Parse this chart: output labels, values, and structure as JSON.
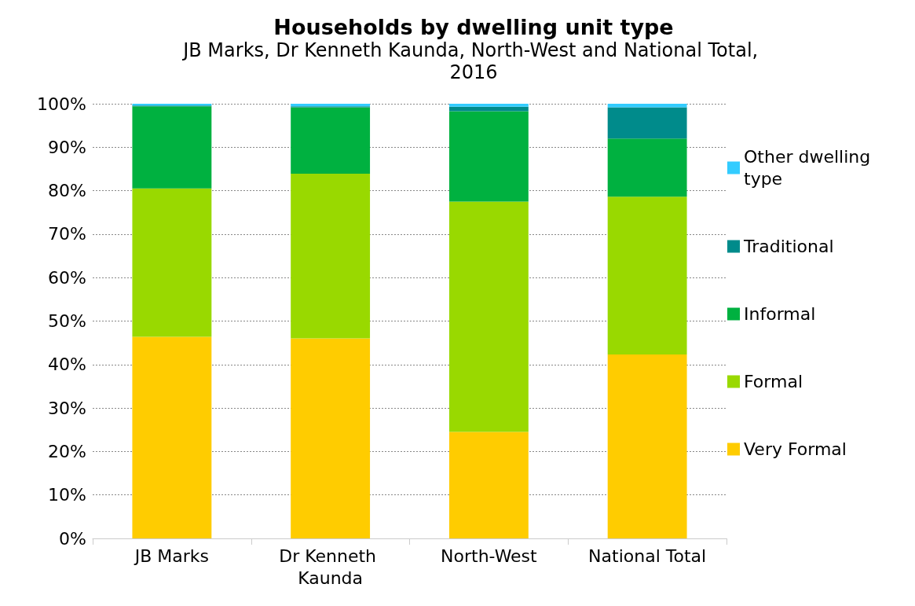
{
  "chart_data": {
    "type": "bar",
    "stacked": true,
    "title": "Households by dwelling unit type",
    "subtitle": "JB Marks, Dr Kenneth Kaunda, North-West and National Total, 2016",
    "categories": [
      "JB Marks",
      "Dr Kenneth Kaunda",
      "North-West",
      "National Total"
    ],
    "series": [
      {
        "name": "Very Formal",
        "color": "#ffcc00",
        "values": [
          46.4,
          46.0,
          24.5,
          42.3
        ]
      },
      {
        "name": "Formal",
        "color": "#99d900",
        "values": [
          34.1,
          37.9,
          53.0,
          36.3
        ]
      },
      {
        "name": "Informal",
        "color": "#00b140",
        "values": [
          18.9,
          15.3,
          20.8,
          13.4
        ]
      },
      {
        "name": "Traditional",
        "color": "#008b8b",
        "values": [
          0.2,
          0.2,
          1.0,
          7.2
        ]
      },
      {
        "name": "Other dwelling type",
        "color": "#33ccff",
        "values": [
          0.4,
          0.6,
          0.7,
          0.8
        ]
      }
    ],
    "ylim": [
      0,
      100
    ],
    "yticks": [
      {
        "value": 0,
        "label": "0%"
      },
      {
        "value": 10,
        "label": "10%"
      },
      {
        "value": 20,
        "label": "20%"
      },
      {
        "value": 30,
        "label": "30%"
      },
      {
        "value": 40,
        "label": "40%"
      },
      {
        "value": 50,
        "label": "50%"
      },
      {
        "value": 60,
        "label": "60%"
      },
      {
        "value": 70,
        "label": "70%"
      },
      {
        "value": 80,
        "label": "80%"
      },
      {
        "value": 90,
        "label": "90%"
      },
      {
        "value": 100,
        "label": "100%"
      }
    ],
    "grid": "y",
    "legend": "right"
  }
}
